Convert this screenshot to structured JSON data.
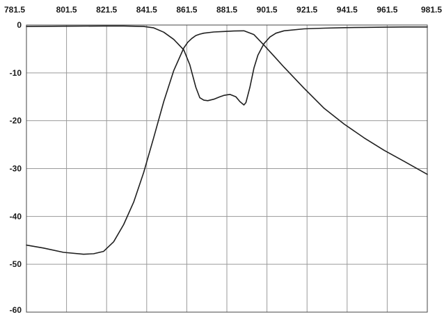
{
  "chart_data": {
    "type": "line",
    "title": "",
    "xlabel": "",
    "ylabel": "",
    "xlim": [
      781.5,
      981.5
    ],
    "ylim": [
      -60,
      0
    ],
    "x_ticks": [
      "781.5",
      "801.5",
      "821.5",
      "841.5",
      "861.5",
      "881.5",
      "901.5",
      "921.5",
      "941.5",
      "961.5",
      "981.5"
    ],
    "y_ticks": [
      "0",
      "-10",
      "-20",
      "-30",
      "-40",
      "-50",
      "-60"
    ],
    "grid": true,
    "legend": "none",
    "series": [
      {
        "x": [
          781.5,
          790,
          800,
          810,
          815,
          820,
          825,
          830,
          835,
          840,
          845,
          850,
          855,
          860,
          862,
          864,
          866,
          868,
          870,
          875,
          880,
          885,
          890,
          895,
          900,
          905,
          910,
          920,
          930,
          940,
          950,
          960,
          970,
          981.5
        ],
        "y": [
          -46,
          -46.6,
          -47.5,
          -47.9,
          -47.8,
          -47.3,
          -45.3,
          -41.7,
          -37,
          -30.8,
          -23.5,
          -16,
          -9.5,
          -4.8,
          -3.6,
          -2.8,
          -2.2,
          -1.9,
          -1.7,
          -1.45,
          -1.35,
          -1.25,
          -1.2,
          -2,
          -4.2,
          -6.5,
          -8.8,
          -13.2,
          -17.4,
          -20.7,
          -23.6,
          -26.2,
          -28.5,
          -31.2
        ]
      },
      {
        "x": [
          781.5,
          800,
          820,
          830,
          840,
          845,
          850,
          855,
          860,
          863,
          866,
          868,
          870,
          872,
          875,
          878,
          880,
          883,
          886,
          888,
          890,
          891,
          893,
          895,
          897,
          900,
          903,
          906,
          910,
          920,
          930,
          940,
          950,
          960,
          970,
          981.5
        ],
        "y": [
          -0.3,
          -0.25,
          -0.2,
          -0.2,
          -0.3,
          -0.6,
          -1.5,
          -3,
          -5.2,
          -8.3,
          -13,
          -15.2,
          -15.7,
          -15.8,
          -15.5,
          -15,
          -14.7,
          -14.5,
          -15,
          -16,
          -16.7,
          -16.2,
          -13,
          -9,
          -6.3,
          -3.9,
          -2.5,
          -1.7,
          -1.2,
          -0.8,
          -0.65,
          -0.55,
          -0.5,
          -0.45,
          -0.4,
          -0.4
        ]
      }
    ]
  }
}
